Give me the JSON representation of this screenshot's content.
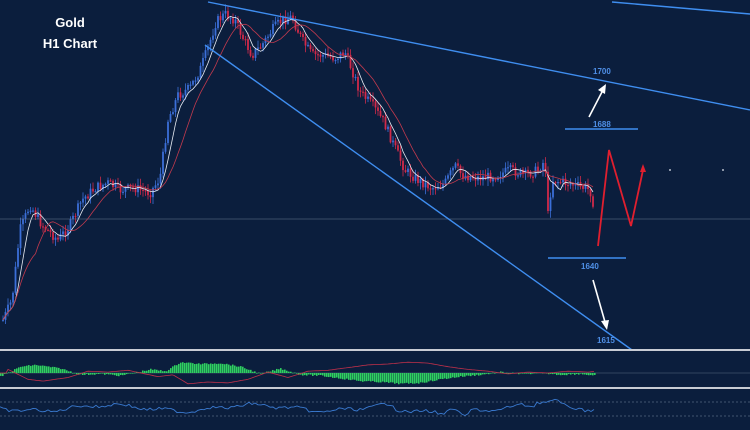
{
  "chart_data": {
    "type": "candlestick",
    "title": "Gold",
    "subtitle": "H1 Chart",
    "levels": [
      {
        "label": "1700",
        "value": 1700
      },
      {
        "label": "1688",
        "value": 1688
      },
      {
        "label": "1640",
        "value": 1640
      },
      {
        "label": "1615",
        "value": 1615
      }
    ],
    "indicators": [
      "macd-histogram",
      "oscillator"
    ],
    "colors": {
      "background": "#0b1e3d",
      "bull": "#3b6fd8",
      "bear": "#d02a4a",
      "trendline": "#3f8ef0",
      "projection": "#e01f2f",
      "arrow": "#ffffff",
      "histogram": "#2fd060",
      "signal": "#c0304a",
      "oscillator": "#3a7ad0",
      "separator": "#c8ccd4"
    }
  }
}
